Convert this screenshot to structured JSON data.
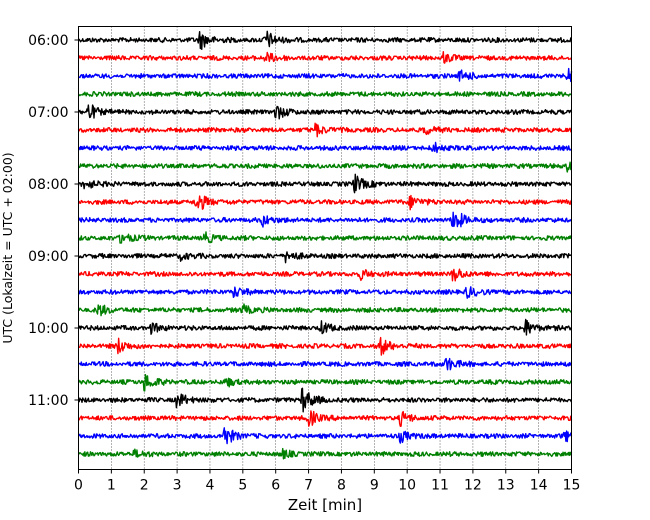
{
  "chart_data": {
    "type": "line",
    "title": "",
    "xlabel": "Zeit  [min]",
    "ylabel": "UTC (Lokalzeit = UTC + 02:00)",
    "xlim": [
      0,
      15
    ],
    "x_ticks": [
      "0",
      "1",
      "2",
      "3",
      "4",
      "5",
      "6",
      "7",
      "8",
      "9",
      "10",
      "11",
      "12",
      "13",
      "14",
      "15"
    ],
    "y_tick_labels": [
      "06:00",
      "07:00",
      "08:00",
      "09:00",
      "10:00",
      "11:00"
    ],
    "grid": "vertical dotted",
    "trace_interval_minutes": 15,
    "trace_colors": [
      "#000000",
      "#ff0000",
      "#0000ff",
      "#008000"
    ],
    "traces": [
      {
        "start": "06:00",
        "color": "#000000",
        "events": [
          [
            3.7,
            1.0
          ],
          [
            5.7,
            1.0
          ]
        ]
      },
      {
        "start": "06:15",
        "color": "#ff0000",
        "events": [
          [
            5.7,
            0.6
          ],
          [
            11.1,
            0.5
          ]
        ]
      },
      {
        "start": "06:30",
        "color": "#0000ff",
        "events": [
          [
            11.6,
            0.6
          ],
          [
            14.9,
            0.8
          ]
        ]
      },
      {
        "start": "06:45",
        "color": "#008000",
        "events": []
      },
      {
        "start": "07:00",
        "color": "#000000",
        "events": [
          [
            0.3,
            0.9
          ],
          [
            6.0,
            0.8
          ]
        ]
      },
      {
        "start": "07:15",
        "color": "#ff0000",
        "events": [
          [
            7.2,
            0.7
          ],
          [
            10.5,
            0.5
          ]
        ]
      },
      {
        "start": "07:30",
        "color": "#0000ff",
        "events": [
          [
            10.8,
            0.5
          ]
        ]
      },
      {
        "start": "07:45",
        "color": "#008000",
        "events": [
          [
            14.9,
            0.8
          ]
        ]
      },
      {
        "start": "08:00",
        "color": "#000000",
        "events": [
          [
            0.2,
            0.6
          ],
          [
            8.4,
            1.0
          ]
        ]
      },
      {
        "start": "08:15",
        "color": "#ff0000",
        "events": [
          [
            3.6,
            1.1
          ],
          [
            10.1,
            0.7
          ]
        ]
      },
      {
        "start": "08:30",
        "color": "#0000ff",
        "events": [
          [
            5.6,
            0.6
          ],
          [
            11.4,
            1.3
          ]
        ]
      },
      {
        "start": "08:45",
        "color": "#008000",
        "events": [
          [
            1.3,
            0.7
          ],
          [
            3.8,
            0.6
          ]
        ]
      },
      {
        "start": "09:00",
        "color": "#000000",
        "events": [
          [
            3.1,
            0.4
          ],
          [
            6.3,
            0.6
          ]
        ]
      },
      {
        "start": "09:15",
        "color": "#ff0000",
        "events": [
          [
            8.6,
            0.5
          ],
          [
            11.4,
            0.8
          ]
        ]
      },
      {
        "start": "09:30",
        "color": "#0000ff",
        "events": [
          [
            4.7,
            0.6
          ],
          [
            11.8,
            0.6
          ]
        ]
      },
      {
        "start": "09:45",
        "color": "#008000",
        "events": [
          [
            0.6,
            0.6
          ],
          [
            5.0,
            0.5
          ]
        ]
      },
      {
        "start": "10:00",
        "color": "#000000",
        "events": [
          [
            2.2,
            0.5
          ],
          [
            7.4,
            0.6
          ],
          [
            13.6,
            0.8
          ]
        ]
      },
      {
        "start": "10:15",
        "color": "#ff0000",
        "events": [
          [
            1.2,
            0.8
          ],
          [
            9.2,
            0.9
          ]
        ]
      },
      {
        "start": "10:30",
        "color": "#0000ff",
        "events": [
          [
            11.2,
            0.8
          ]
        ]
      },
      {
        "start": "10:45",
        "color": "#008000",
        "events": [
          [
            2.0,
            1.0
          ],
          [
            4.5,
            0.4
          ]
        ]
      },
      {
        "start": "11:00",
        "color": "#000000",
        "events": [
          [
            3.0,
            0.8
          ],
          [
            6.8,
            1.4
          ]
        ]
      },
      {
        "start": "11:15",
        "color": "#ff0000",
        "events": [
          [
            7.0,
            0.9
          ],
          [
            9.8,
            0.7
          ]
        ]
      },
      {
        "start": "11:30",
        "color": "#0000ff",
        "events": [
          [
            4.4,
            1.2
          ],
          [
            9.8,
            0.6
          ],
          [
            14.8,
            0.5
          ]
        ]
      },
      {
        "start": "11:45",
        "color": "#008000",
        "events": [
          [
            1.7,
            0.4
          ],
          [
            6.2,
            0.4
          ]
        ]
      }
    ]
  }
}
